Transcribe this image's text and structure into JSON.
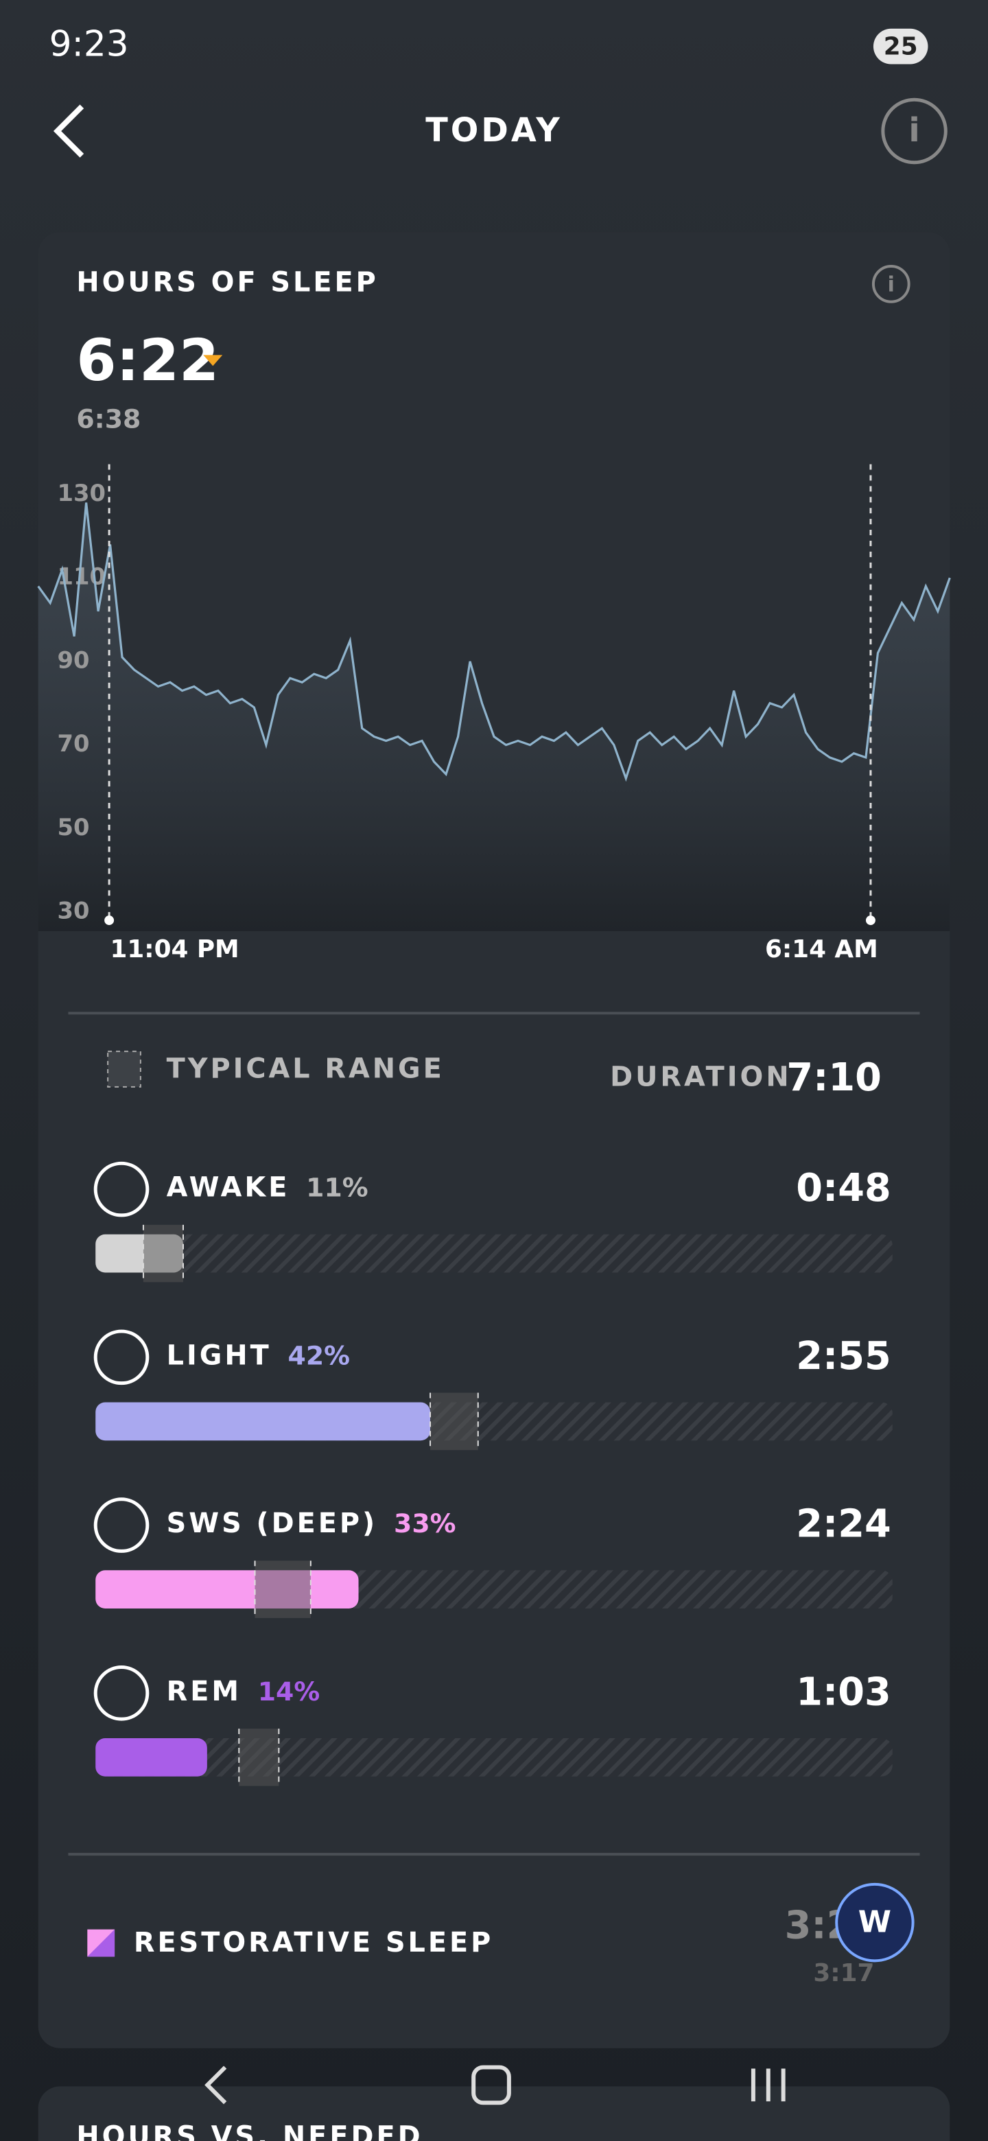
{
  "status_bar": {
    "time": "9:23",
    "battery": "25"
  },
  "header": {
    "title": "TODAY"
  },
  "sleep_card": {
    "title": "HOURS OF SLEEP",
    "hours": "6:22",
    "previous": "6:38",
    "chart": {
      "type": "line",
      "color": "#8fb3cc",
      "ylim": [
        30,
        130
      ],
      "yticks": [
        30,
        50,
        70,
        90,
        110,
        130
      ],
      "values": [
        108,
        104,
        112,
        96,
        128,
        102,
        118,
        91,
        88,
        86,
        84,
        85,
        83,
        84,
        82,
        83,
        80,
        81,
        79,
        70,
        82,
        86,
        85,
        87,
        86,
        88,
        95,
        74,
        72,
        71,
        72,
        70,
        71,
        66,
        63,
        72,
        90,
        80,
        72,
        70,
        71,
        70,
        72,
        71,
        73,
        70,
        72,
        74,
        70,
        62,
        71,
        73,
        70,
        72,
        69,
        71,
        74,
        70,
        83,
        72,
        75,
        80,
        79,
        82,
        73,
        69,
        67,
        66,
        68,
        67,
        92,
        98,
        104,
        100,
        108,
        102,
        110
      ],
      "start_label": "11:04 PM",
      "end_label": "6:14 AM"
    },
    "typical_range_label": "TYPICAL RANGE",
    "duration_label": "DURATION",
    "duration": "7:10",
    "stages": [
      {
        "name": "AWAKE",
        "percent": 11,
        "percent_label": "11%",
        "duration": "0:48",
        "color": "#d4d4d4",
        "label_color": "#b8b8b8",
        "typical_range": [
          6,
          11
        ]
      },
      {
        "name": "LIGHT",
        "percent": 42,
        "percent_label": "42%",
        "duration": "2:55",
        "color": "#a9a8ef",
        "label_color": "#a9a8ef",
        "typical_range": [
          42,
          48
        ]
      },
      {
        "name": "SWS (DEEP)",
        "percent": 33,
        "percent_label": "33%",
        "duration": "2:24",
        "color": "#f89cf0",
        "label_color": "#f89cf0",
        "typical_range": [
          20,
          27
        ]
      },
      {
        "name": "REM",
        "percent": 14,
        "percent_label": "14%",
        "duration": "1:03",
        "color": "#a95ee8",
        "label_color": "#a95ee8",
        "typical_range": [
          18,
          23
        ]
      }
    ],
    "restorative": {
      "label": "RESTORATIVE SLEEP",
      "value": "3:2",
      "subvalue": "3:17"
    }
  },
  "next_card": {
    "title": "HOURS VS. NEEDED"
  }
}
